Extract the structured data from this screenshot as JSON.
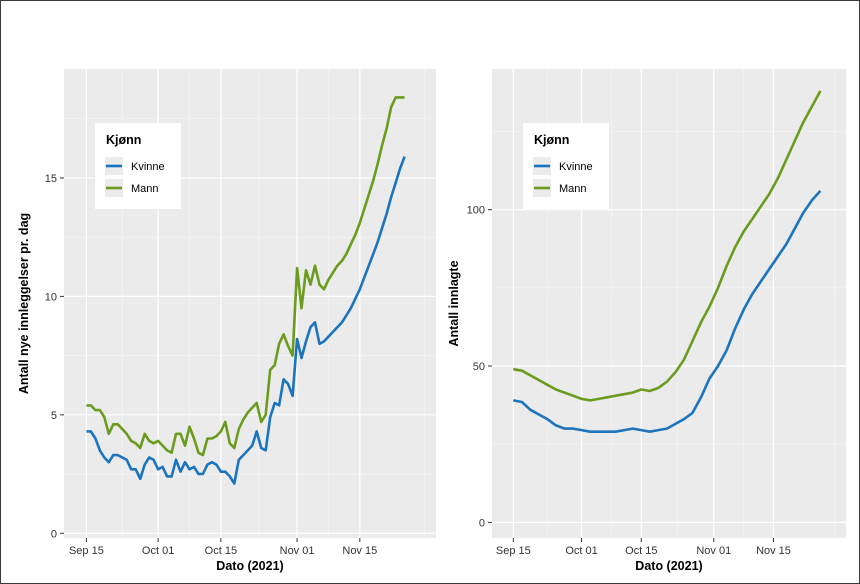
{
  "chart_data": [
    {
      "type": "line",
      "xlabel": "Dato (2021)",
      "ylabel": "Antall nye innleggelser pr. dag",
      "x_ticks": [
        "Sep 15",
        "Oct 01",
        "Oct 15",
        "Nov 01",
        "Nov 15"
      ],
      "x_tick_days": [
        0,
        16,
        30,
        47,
        61
      ],
      "y_ticks": [
        0,
        5,
        10,
        15
      ],
      "ylim": [
        -0.2,
        19.6
      ],
      "xlim": [
        -5,
        78
      ],
      "x_day0": "2021-09-15",
      "grid": true,
      "legend": {
        "title": "Kjønn",
        "position": "top-left",
        "entries": [
          "Kvinne",
          "Mann"
        ]
      },
      "series": [
        {
          "name": "Kvinne",
          "color": "#1c75bc",
          "x": [
            0,
            1,
            2,
            3,
            4,
            5,
            6,
            7,
            8,
            9,
            10,
            11,
            12,
            13,
            14,
            15,
            16,
            17,
            18,
            19,
            20,
            21,
            22,
            23,
            24,
            25,
            26,
            27,
            28,
            29,
            30,
            31,
            32,
            33,
            34,
            35,
            36,
            37,
            38,
            39,
            40,
            41,
            42,
            43,
            44,
            45,
            46,
            47,
            48,
            49,
            50,
            51,
            52,
            53,
            54,
            55,
            56,
            57,
            58,
            59,
            60,
            61,
            62,
            63,
            64,
            65,
            66,
            67,
            68,
            69,
            70,
            71,
            72
          ],
          "y": [
            4.3,
            4.3,
            4.0,
            3.5,
            3.2,
            3.0,
            3.3,
            3.3,
            3.2,
            3.1,
            2.7,
            2.7,
            2.3,
            2.9,
            3.2,
            3.1,
            2.7,
            2.8,
            2.4,
            2.4,
            3.1,
            2.6,
            3.0,
            2.7,
            2.8,
            2.5,
            2.5,
            2.9,
            3.0,
            2.9,
            2.6,
            2.6,
            2.4,
            2.1,
            3.1,
            3.3,
            3.5,
            3.7,
            4.3,
            3.6,
            3.5,
            4.9,
            5.5,
            5.4,
            6.5,
            6.3,
            5.8,
            8.2,
            7.4,
            8.1,
            8.7,
            8.9,
            8.0,
            8.1,
            8.3,
            8.5,
            8.7,
            8.9,
            9.2,
            9.5,
            9.9,
            10.3,
            10.8,
            11.3,
            11.8,
            12.3,
            12.9,
            13.5,
            14.2,
            14.8,
            15.4,
            15.9,
            14.3
          ],
          "smooth_end": true
        },
        {
          "name": "Mann",
          "color": "#6b9c1f",
          "x": [
            0,
            1,
            2,
            3,
            4,
            5,
            6,
            7,
            8,
            9,
            10,
            11,
            12,
            13,
            14,
            15,
            16,
            17,
            18,
            19,
            20,
            21,
            22,
            23,
            24,
            25,
            26,
            27,
            28,
            29,
            30,
            31,
            32,
            33,
            34,
            35,
            36,
            37,
            38,
            39,
            40,
            41,
            42,
            43,
            44,
            45,
            46,
            47,
            48,
            49,
            50,
            51,
            52,
            53,
            54,
            55,
            56,
            57,
            58,
            59,
            60,
            61,
            62,
            63,
            64,
            65,
            66,
            67,
            68,
            69,
            70,
            71,
            72
          ],
          "y": [
            5.4,
            5.4,
            5.2,
            5.2,
            4.9,
            4.2,
            4.6,
            4.6,
            4.4,
            4.2,
            3.9,
            3.8,
            3.6,
            4.2,
            3.9,
            3.8,
            3.9,
            3.7,
            3.5,
            3.4,
            4.2,
            4.2,
            3.7,
            4.5,
            4.0,
            3.4,
            3.3,
            4.0,
            4.0,
            4.1,
            4.3,
            4.7,
            3.8,
            3.6,
            4.4,
            4.8,
            5.1,
            5.3,
            5.5,
            4.7,
            5.0,
            6.9,
            7.1,
            8.0,
            8.4,
            7.9,
            7.5,
            11.2,
            9.5,
            11.1,
            10.5,
            11.3,
            10.5,
            10.3,
            10.7,
            11.0,
            11.3,
            11.5,
            11.8,
            12.2,
            12.6,
            13.1,
            13.7,
            14.3,
            14.9,
            15.6,
            16.4,
            17.1,
            18.0,
            18.4,
            18.4,
            18.4,
            18.4
          ],
          "smooth_end": true
        }
      ]
    },
    {
      "type": "line",
      "xlabel": "Dato (2021)",
      "ylabel": "Antall innlagte",
      "x_ticks": [
        "Sep 15",
        "Oct 01",
        "Oct 15",
        "Nov 01",
        "Nov 15"
      ],
      "x_tick_days": [
        0,
        16,
        30,
        47,
        61
      ],
      "y_ticks": [
        0,
        50,
        100
      ],
      "ylim": [
        -5,
        145
      ],
      "xlim": [
        -5,
        78
      ],
      "x_day0": "2021-09-15",
      "grid": true,
      "legend": {
        "title": "Kjønn",
        "position": "top-left",
        "entries": [
          "Kvinne",
          "Mann"
        ]
      },
      "series": [
        {
          "name": "Kvinne",
          "color": "#1c75bc",
          "x": [
            0,
            2,
            4,
            6,
            8,
            10,
            12,
            14,
            16,
            18,
            20,
            22,
            24,
            26,
            28,
            30,
            32,
            34,
            36,
            38,
            40,
            42,
            44,
            46,
            48,
            50,
            52,
            54,
            56,
            58,
            60,
            62,
            64,
            66,
            68,
            70,
            72
          ],
          "y": [
            39,
            38.5,
            36,
            34.5,
            33,
            31,
            30,
            30,
            29.5,
            29,
            29,
            29,
            29,
            29.5,
            30,
            29.5,
            29,
            29.5,
            30,
            31.5,
            33,
            35,
            40,
            46,
            50,
            55,
            62,
            68,
            73,
            77,
            81,
            85,
            89,
            94,
            99,
            103,
            106
          ],
          "smooth_end": false
        },
        {
          "name": "Mann",
          "color": "#6b9c1f",
          "x": [
            0,
            2,
            4,
            6,
            8,
            10,
            12,
            14,
            16,
            18,
            20,
            22,
            24,
            26,
            28,
            30,
            32,
            34,
            36,
            38,
            40,
            42,
            44,
            46,
            48,
            50,
            52,
            54,
            56,
            58,
            60,
            62,
            64,
            66,
            68,
            70,
            72
          ],
          "y": [
            49,
            48.5,
            47,
            45.5,
            44,
            42.5,
            41.5,
            40.5,
            39.5,
            39,
            39.5,
            40,
            40.5,
            41,
            41.5,
            42.5,
            42,
            43,
            45,
            48,
            52,
            58,
            64,
            69,
            75,
            82,
            88,
            93,
            97,
            101,
            105,
            110,
            116,
            122,
            128,
            133,
            138
          ],
          "smooth_end": false
        }
      ]
    }
  ]
}
